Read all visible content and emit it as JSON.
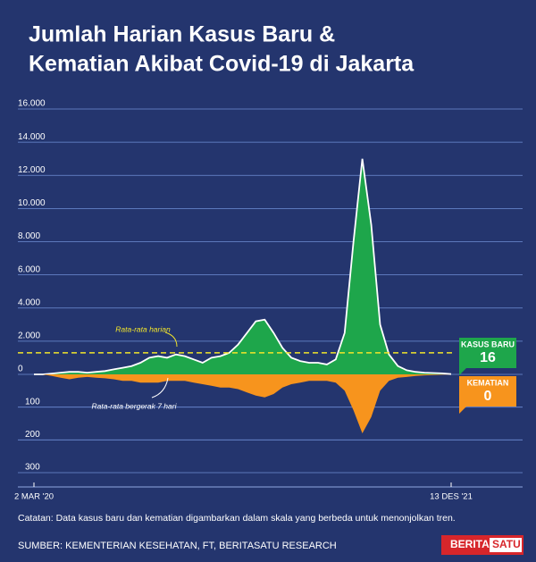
{
  "chart_data": {
    "type": "mirrored-area",
    "title": [
      "Jumlah Harian Kasus Baru &",
      "Kematian Akibat Covid-19 di Jakarta"
    ],
    "categories": [
      "2 MAR '20",
      null,
      null,
      null,
      null,
      null,
      null,
      null,
      null,
      null,
      null,
      null,
      null,
      null,
      null,
      null,
      null,
      null,
      null,
      null,
      null,
      null,
      null,
      null,
      null,
      null,
      null,
      null,
      null,
      null,
      null,
      null,
      null,
      null,
      null,
      null,
      null,
      null,
      null,
      null,
      null,
      null,
      null,
      null,
      null,
      null,
      null,
      "13 DES '21"
    ],
    "series": [
      {
        "name": "KASUS BARU",
        "color": "#1ea64b",
        "values": [
          0,
          0,
          50,
          100,
          150,
          150,
          100,
          150,
          200,
          300,
          400,
          500,
          700,
          1000,
          1100,
          1000,
          1200,
          1100,
          900,
          700,
          1000,
          1100,
          1300,
          1800,
          2500,
          3200,
          3300,
          2500,
          1600,
          1000,
          800,
          700,
          700,
          600,
          900,
          2500,
          8000,
          13000,
          9000,
          3000,
          1200,
          500,
          250,
          150,
          100,
          80,
          60,
          16
        ]
      },
      {
        "name": "KEMATIAN",
        "color": "#f7941d",
        "axis": "y2",
        "values": [
          0,
          0,
          5,
          10,
          15,
          10,
          8,
          10,
          12,
          15,
          20,
          20,
          25,
          25,
          25,
          20,
          20,
          20,
          25,
          30,
          35,
          40,
          40,
          45,
          55,
          65,
          70,
          60,
          40,
          30,
          25,
          20,
          20,
          20,
          25,
          50,
          110,
          180,
          130,
          50,
          20,
          10,
          8,
          5,
          3,
          2,
          1,
          0
        ]
      }
    ],
    "ylim": [
      0,
      16000
    ],
    "yticks": [
      0,
      {
        "value": 2000,
        "label": "2.000"
      },
      {
        "value": 4000,
        "label": "4.000"
      },
      {
        "value": 6000,
        "label": "6.000"
      },
      {
        "value": 8000,
        "label": "8.000"
      },
      {
        "value": 10000,
        "label": "10.000"
      },
      {
        "value": 12000,
        "label": "12.000"
      },
      {
        "value": 14000,
        "label": "14.000"
      },
      {
        "value": 16000,
        "label": "16.000"
      }
    ],
    "y2lim": [
      0,
      300
    ],
    "y2ticks": [
      100,
      200,
      300
    ],
    "grid": true,
    "reference_line": {
      "value": 1300,
      "label": "Rata-rata harian",
      "color": "#f2e52b"
    },
    "moving_average_label": "Rata-rata bergerak 7 hari",
    "note": "Catatan: Data kasus baru dan kematian digambarkan dalam skala yang berbeda untuk menonjolkan tren.",
    "source": "SUMBER: KEMENTERIAN KESEHATAN, FT, BERITASATU RESEARCH",
    "logo": [
      "BERITA",
      "SATU"
    ]
  }
}
